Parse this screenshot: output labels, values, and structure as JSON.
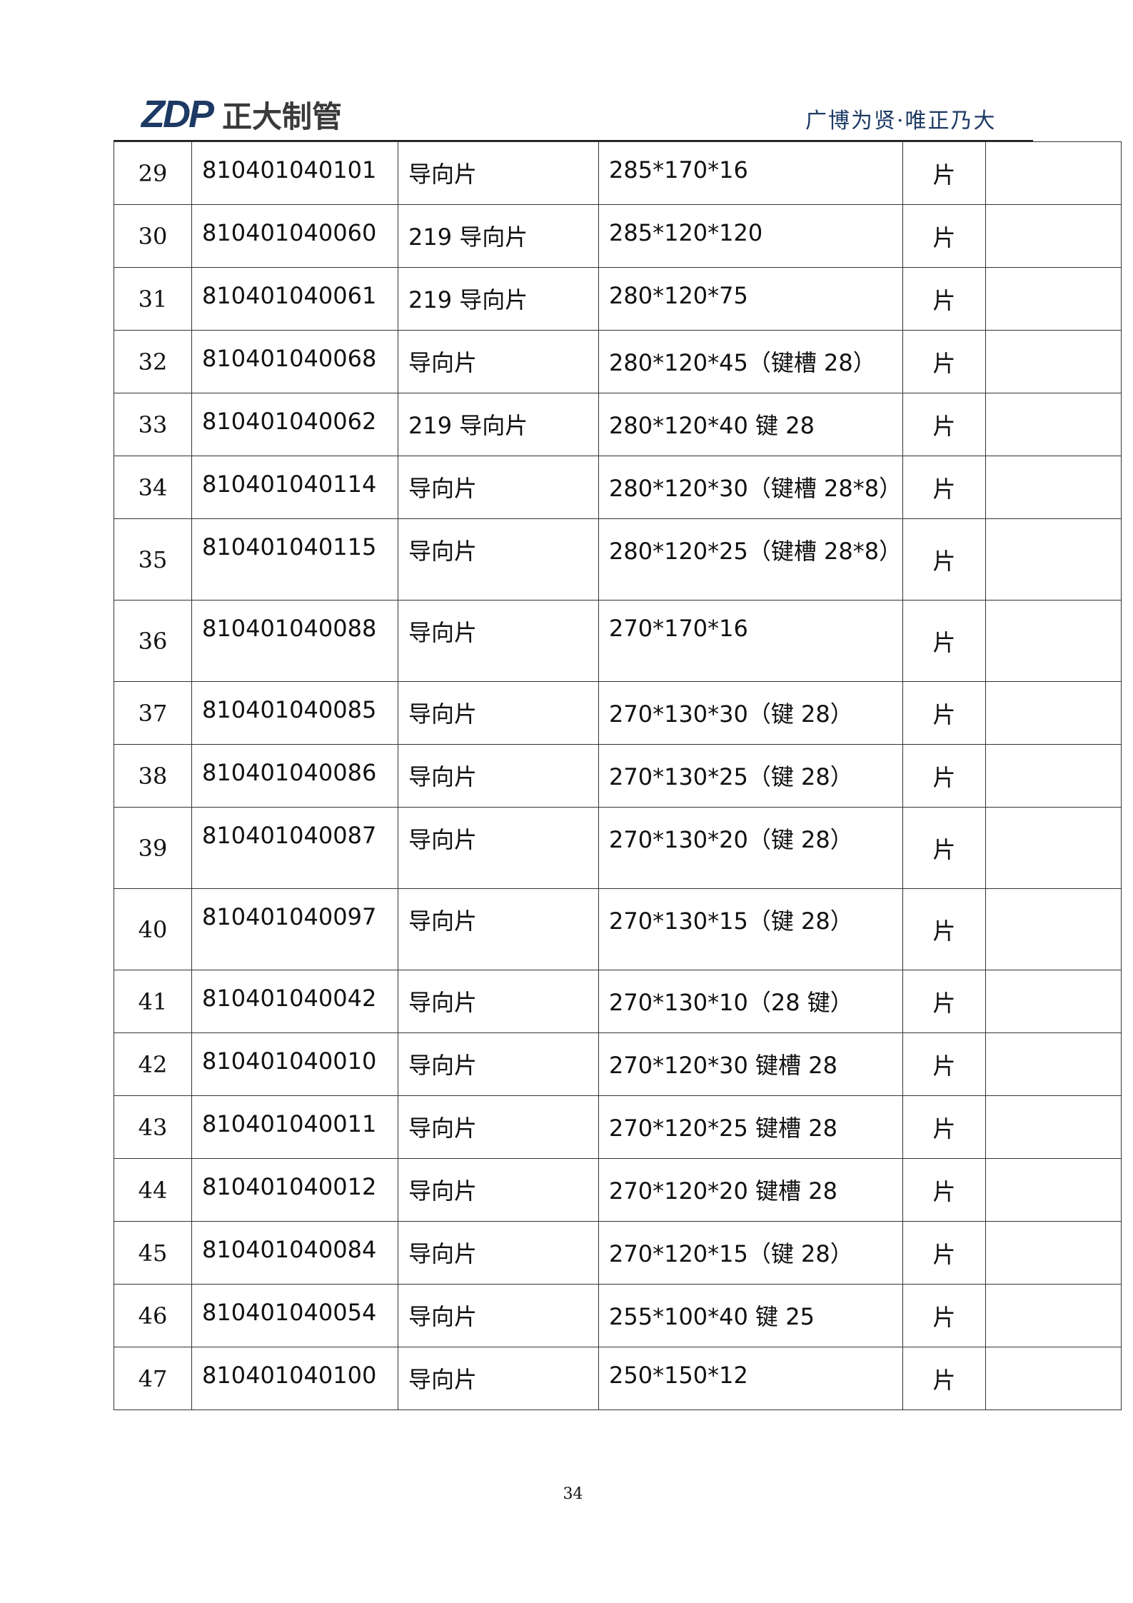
{
  "header": {
    "logo_mark": "ZDP",
    "logo_name": "正大制管",
    "slogan": "广博为贤·唯正乃大",
    "brand_color": "#1d3a64"
  },
  "rows": [
    {
      "no": "29",
      "code": "810401040101",
      "name": "导向片",
      "spec": "285*170*16",
      "unit": "片",
      "note": ""
    },
    {
      "no": "30",
      "code": "810401040060",
      "name": "219 导向片",
      "spec": "285*120*120",
      "unit": "片",
      "note": ""
    },
    {
      "no": "31",
      "code": "810401040061",
      "name": "219 导向片",
      "spec": "280*120*75",
      "unit": "片",
      "note": ""
    },
    {
      "no": "32",
      "code": "810401040068",
      "name": "导向片",
      "spec": "280*120*45（键槽 28）",
      "unit": "片",
      "note": ""
    },
    {
      "no": "33",
      "code": "810401040062",
      "name": "219 导向片",
      "spec": "280*120*40 键 28",
      "unit": "片",
      "note": ""
    },
    {
      "no": "34",
      "code": "810401040114",
      "name": "导向片",
      "spec": "280*120*30（键槽 28*8）",
      "unit": "片",
      "note": ""
    },
    {
      "no": "35",
      "code": "810401040115",
      "name": "导向片",
      "spec": "280*120*25（键槽 28*8）",
      "unit": "片",
      "note": ""
    },
    {
      "no": "36",
      "code": "810401040088",
      "name": "导向片",
      "spec": "270*170*16",
      "unit": "片",
      "note": ""
    },
    {
      "no": "37",
      "code": "810401040085",
      "name": "导向片",
      "spec": "270*130*30（键 28）",
      "unit": "片",
      "note": ""
    },
    {
      "no": "38",
      "code": "810401040086",
      "name": "导向片",
      "spec": "270*130*25（键 28）",
      "unit": "片",
      "note": ""
    },
    {
      "no": "39",
      "code": "810401040087",
      "name": "导向片",
      "spec": "270*130*20（键 28）",
      "unit": "片",
      "note": ""
    },
    {
      "no": "40",
      "code": "810401040097",
      "name": "导向片",
      "spec": "270*130*15（键 28）",
      "unit": "片",
      "note": ""
    },
    {
      "no": "41",
      "code": "810401040042",
      "name": "导向片",
      "spec": "270*130*10（28 键）",
      "unit": "片",
      "note": ""
    },
    {
      "no": "42",
      "code": "810401040010",
      "name": "导向片",
      "spec": "270*120*30 键槽 28",
      "unit": "片",
      "note": ""
    },
    {
      "no": "43",
      "code": "810401040011",
      "name": "导向片",
      "spec": "270*120*25 键槽 28",
      "unit": "片",
      "note": ""
    },
    {
      "no": "44",
      "code": "810401040012",
      "name": "导向片",
      "spec": "270*120*20 键槽 28",
      "unit": "片",
      "note": ""
    },
    {
      "no": "45",
      "code": "810401040084",
      "name": "导向片",
      "spec": "270*120*15（键 28）",
      "unit": "片",
      "note": ""
    },
    {
      "no": "46",
      "code": "810401040054",
      "name": "导向片",
      "spec": "255*100*40 键 25",
      "unit": "片",
      "note": ""
    },
    {
      "no": "47",
      "code": "810401040100",
      "name": "导向片",
      "spec": "250*150*12",
      "unit": "片",
      "note": ""
    }
  ],
  "footer": {
    "page_number": "34"
  }
}
